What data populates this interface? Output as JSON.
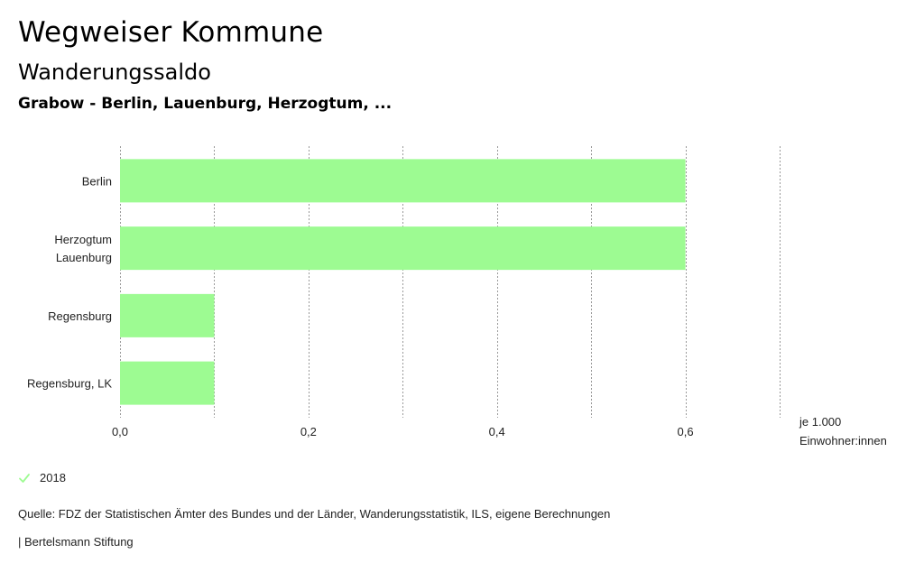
{
  "header": {
    "title": "Wegweiser Kommune",
    "subtitle": "Wanderungssaldo",
    "subject": "Grabow - Berlin, Lauenburg, Herzogtum, ..."
  },
  "chart_data": {
    "type": "bar",
    "orientation": "horizontal",
    "categories": [
      [
        "Berlin"
      ],
      [
        "Herzogtum",
        "Lauenburg"
      ],
      [
        "Regensburg"
      ],
      [
        "Regensburg, LK"
      ]
    ],
    "series": [
      {
        "name": "2018",
        "values": [
          0.6,
          0.6,
          0.1,
          0.1
        ],
        "color": "#9dfb92"
      }
    ],
    "xlim": [
      0,
      0.7
    ],
    "xticks": [
      0,
      0.2,
      0.4,
      0.6
    ],
    "xtick_labels": [
      "0,0",
      "0,2",
      "0,4",
      "0,6"
    ],
    "unit_label": [
      "je 1.000",
      "Einwohner:innen"
    ],
    "grid": true,
    "legend_position": "bottom-left"
  },
  "legend": {
    "label": "2018",
    "icon": "check-icon",
    "color": "#9dfb92"
  },
  "footer": {
    "source": "Quelle: FDZ der Statistischen Ämter des Bundes und der Länder, Wanderungsstatistik, ILS, eigene Berechnungen",
    "credit": "| Bertelsmann Stiftung"
  }
}
